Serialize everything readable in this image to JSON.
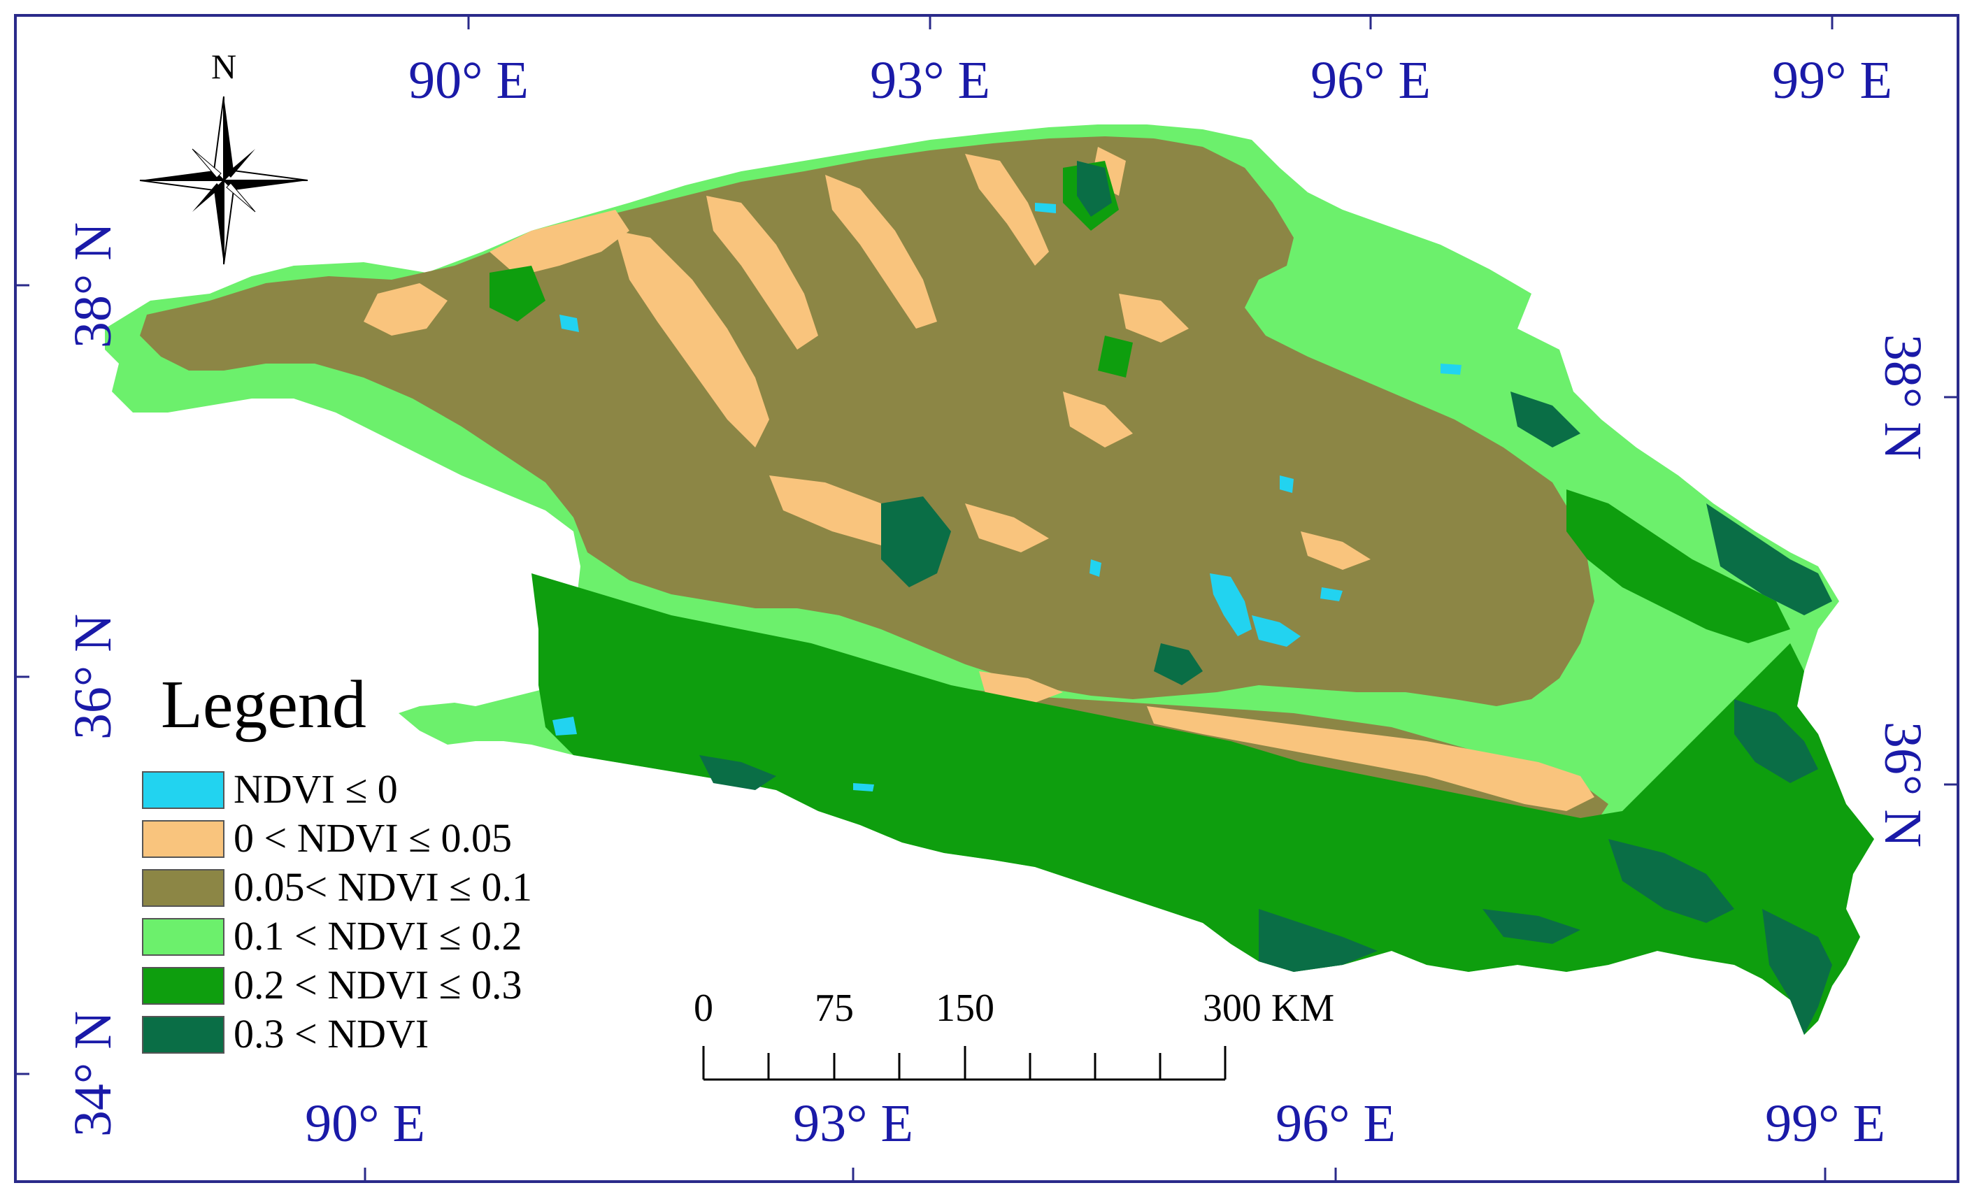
{
  "north_label": "N",
  "top_longitudes": [
    "90° E",
    "93° E",
    "96° E",
    "99° E"
  ],
  "bottom_longitudes": [
    "90° E",
    "93° E",
    "96° E",
    "99° E"
  ],
  "left_latitudes": [
    "38° N",
    "36° N",
    "34° N"
  ],
  "right_latitudes": [
    "38° N",
    "36° N"
  ],
  "legend": {
    "title": "Legend",
    "items": [
      {
        "label": "NDVI ≤ 0",
        "color": "#22d3f0"
      },
      {
        "label": "0 < NDVI ≤ 0.05",
        "color": "#f9c47d"
      },
      {
        "label": "0.05< NDVI ≤ 0.1",
        "color": "#8c8645"
      },
      {
        "label": "0.1 < NDVI ≤ 0.2",
        "color": "#6cf06c"
      },
      {
        "label": "0.2 < NDVI ≤ 0.3",
        "color": "#0e9e0e"
      },
      {
        "label": "0.3 < NDVI",
        "color": "#0a6e46"
      }
    ]
  },
  "scale_bar": {
    "ticks": [
      "0",
      "75",
      "150",
      "300 KM"
    ]
  },
  "colors": {
    "frame": "#2a2a8a",
    "coordinate_text": "#1a1aa8",
    "water": "#22d3f0",
    "sparse": "#f9c47d",
    "barren": "#8c8645",
    "low_veg": "#6cf06c",
    "mid_veg": "#0e9e0e",
    "high_veg": "#0a6e46"
  }
}
